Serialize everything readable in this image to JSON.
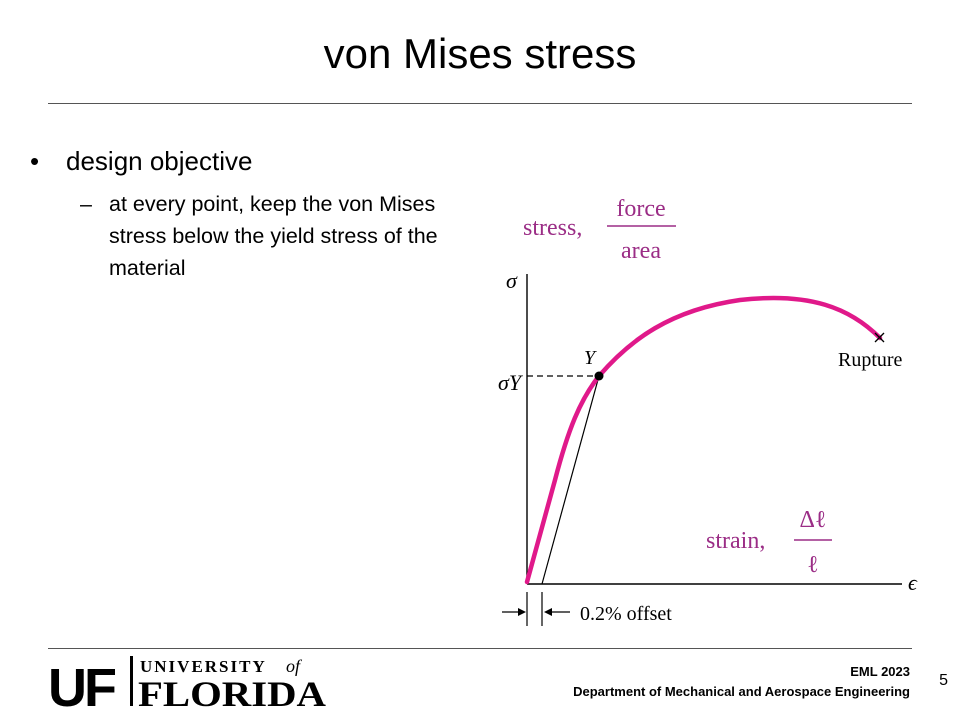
{
  "slide": {
    "title": "von Mises stress",
    "bullet": "design objective",
    "sub_dash": "–",
    "sub_bullet": "at every point, keep the von Mises stress below the yield stress of the material",
    "page_number": "5"
  },
  "figure": {
    "stress_label": "stress,",
    "stress_num": "force",
    "stress_den": "area",
    "y_axis_symbol": "σ",
    "yield_symbol": "σY",
    "yield_point_label": "Y",
    "rupture_label": "Rupture",
    "strain_label": "strain,",
    "strain_num": "Δℓ",
    "strain_den": "ℓ",
    "x_axis_symbol": "ϵ",
    "offset_label": "0.2% offset",
    "curve_color": "#e0198a"
  },
  "footer": {
    "course": "EML 2023",
    "department": "Department of Mechanical and Aerospace Engineering",
    "logo_uf": "UF",
    "logo_university": "UNIVERSITY",
    "logo_of": "of",
    "logo_florida": "FLORIDA"
  }
}
